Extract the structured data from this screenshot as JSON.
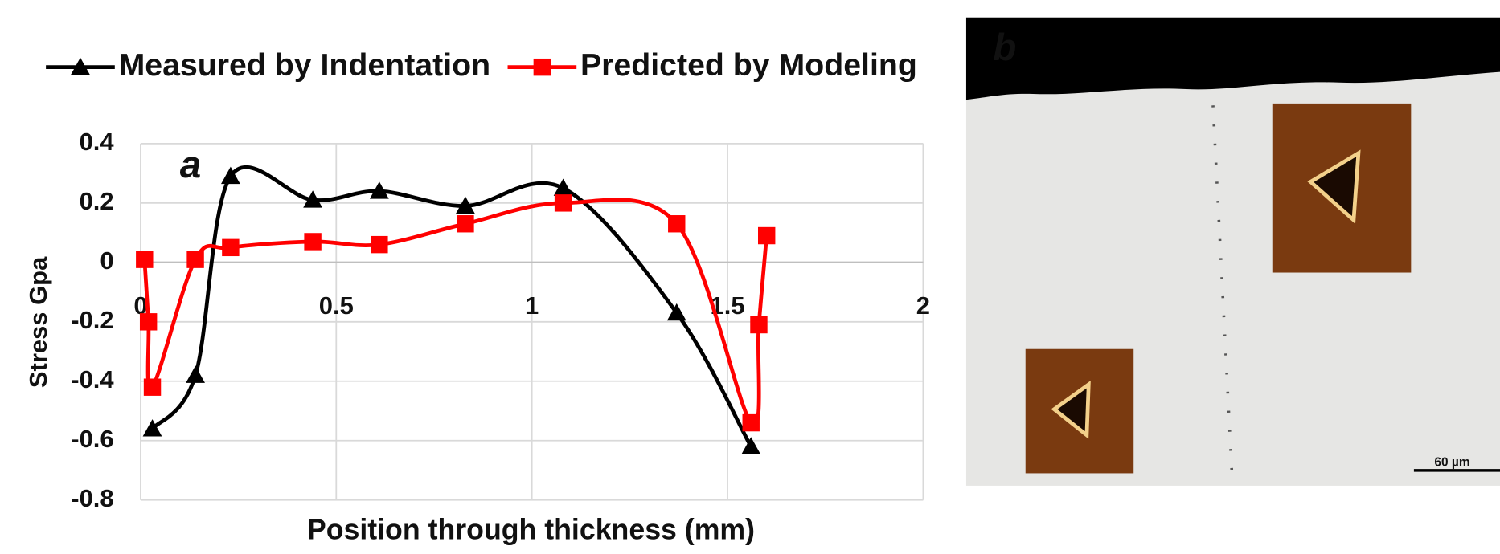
{
  "chart_data": {
    "type": "line",
    "xlabel": "Position through thickness (mm)",
    "ylabel": "Stress Gpa",
    "annotation": "a",
    "xlim": [
      0,
      2
    ],
    "xticks": [
      0,
      0.5,
      1,
      1.5,
      2
    ],
    "ylim": [
      -0.8,
      0.4
    ],
    "yticks": [
      -0.8,
      -0.6,
      -0.4,
      -0.2,
      0,
      0.2,
      0.4
    ],
    "grid": true,
    "legend": "top",
    "smooth": true,
    "series": [
      {
        "name": "Measured by Indentation",
        "color": "#000000",
        "marker": "triangle",
        "x": [
          0.03,
          0.14,
          0.23,
          0.44,
          0.61,
          0.83,
          1.08,
          1.37,
          1.56
        ],
        "values": [
          -0.56,
          -0.38,
          0.29,
          0.21,
          0.24,
          0.19,
          0.25,
          -0.17,
          -0.62
        ]
      },
      {
        "name": "Predicted by Modeling",
        "color": "#ff0000",
        "marker": "square",
        "x": [
          0.01,
          0.02,
          0.03,
          0.14,
          0.23,
          0.44,
          0.61,
          0.83,
          1.08,
          1.37,
          1.56,
          1.58,
          1.6
        ],
        "values": [
          0.01,
          -0.2,
          -0.42,
          0.01,
          0.05,
          0.07,
          0.06,
          0.13,
          0.2,
          0.13,
          -0.54,
          -0.21,
          0.09
        ]
      }
    ]
  },
  "micrograph": {
    "label": "b",
    "scale_bar": "60 µm"
  }
}
